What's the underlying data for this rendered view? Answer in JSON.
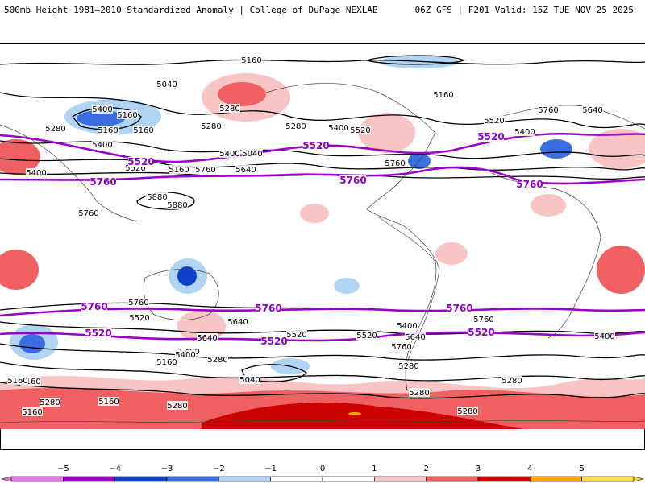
{
  "header": {
    "title_left": "500mb Height 1981–2010 Standardized Anomaly | College of DuPage NEXLAB",
    "title_right": "06Z GFS | F201 Valid: 15Z TUE NOV 25 2025"
  },
  "map": {
    "contour_labels": [
      "5160",
      "5040",
      "5400",
      "5280",
      "5160",
      "5280",
      "5160",
      "5520",
      "5400",
      "5280",
      "5160",
      "5520",
      "5160",
      "5040",
      "5400",
      "5280",
      "5400",
      "5160",
      "5520",
      "5400",
      "5760",
      "5640",
      "5400",
      "5760",
      "5640",
      "5760",
      "5880",
      "5880",
      "5760",
      "5760",
      "5640",
      "5520",
      "5400",
      "5760",
      "5520",
      "5640",
      "5400",
      "5160",
      "5280",
      "5040",
      "5160",
      "5280",
      "5520",
      "5400",
      "5760",
      "5640",
      "5520",
      "5400",
      "5280",
      "5160",
      "5280",
      "5160",
      "5280",
      "5280",
      "5160",
      "5280"
    ],
    "purple_labels": [
      "5520",
      "5520",
      "5520",
      "5760",
      "5760",
      "5760",
      "5760",
      "5760",
      "5760",
      "5520",
      "5520",
      "5520"
    ]
  },
  "colorbar": {
    "ticks": [
      "−5",
      "−4",
      "−3",
      "−2",
      "−1",
      "0",
      "1",
      "2",
      "3",
      "4",
      "5"
    ],
    "colors": [
      "#e878e8",
      "#9a00c8",
      "#1040c8",
      "#3a6ee0",
      "#b0d4f4",
      "#ffffff",
      "#ffffff",
      "#f8c4c4",
      "#f06060",
      "#cc0000",
      "#ffaa00",
      "#ffdd44"
    ]
  }
}
